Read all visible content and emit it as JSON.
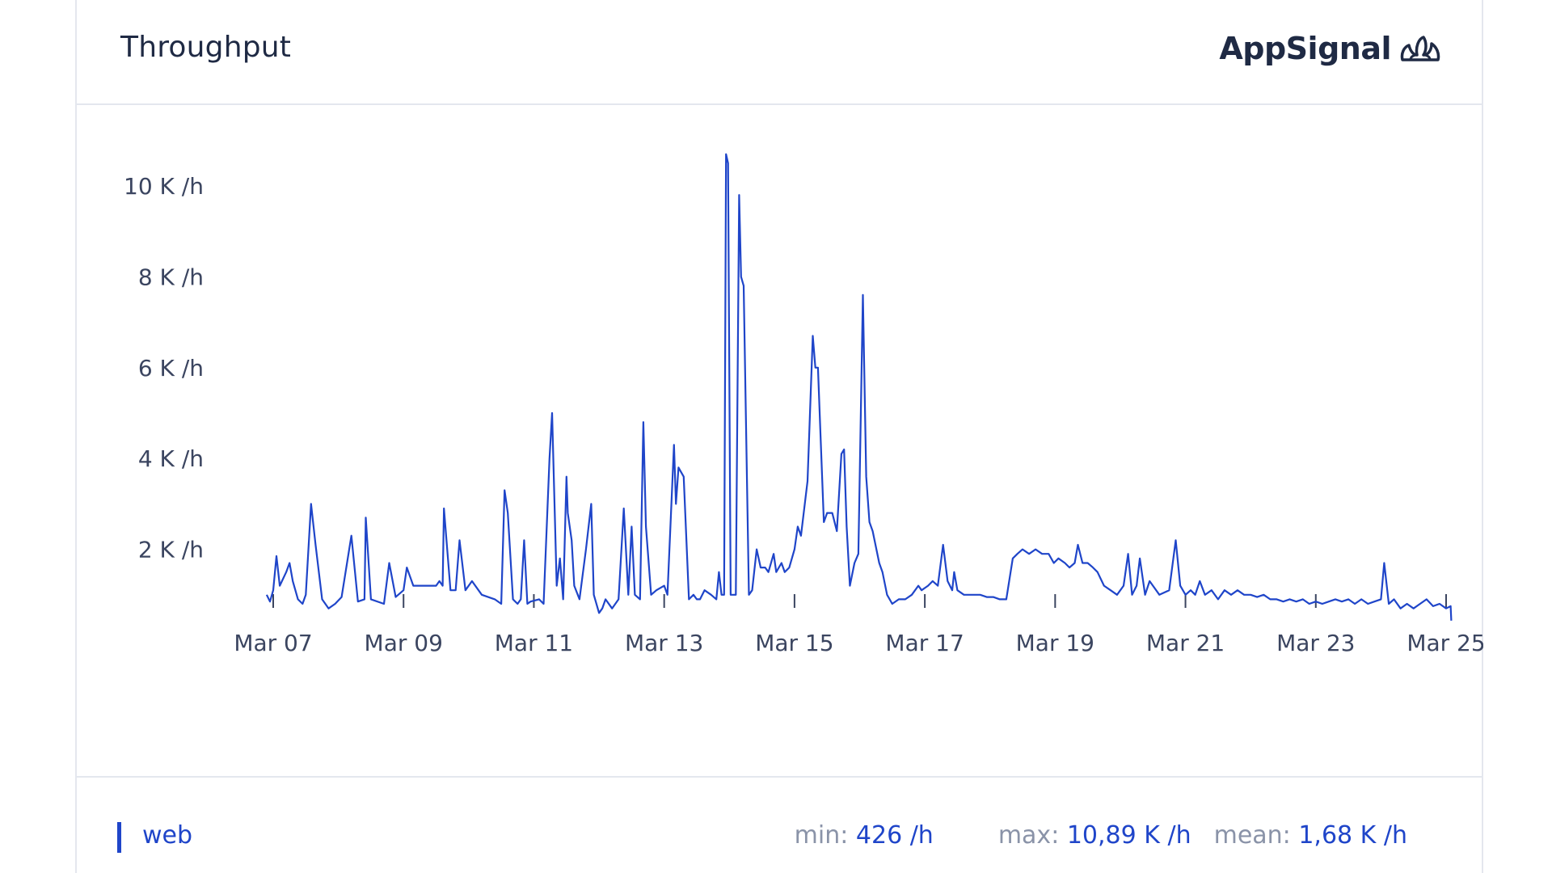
{
  "header": {
    "title": "Throughput",
    "brand": "AppSignal"
  },
  "legend": {
    "series_name": "web",
    "stats": [
      {
        "label": "min:",
        "value": "426 /h"
      },
      {
        "label": "max:",
        "value": "10,89 K /h"
      },
      {
        "label": "mean:",
        "value": "1,68 K /h"
      }
    ]
  },
  "colors": {
    "line": "#1f45c9",
    "text": "#1f2a44",
    "muted": "#8a93a8",
    "border": "#e4e7ee"
  },
  "chart_data": {
    "type": "line",
    "title": "Throughput",
    "xlabel": "",
    "ylabel": "",
    "ylim": [
      0,
      11000
    ],
    "xlim": [
      0,
      18.1
    ],
    "y_ticks": [
      {
        "value": 2000,
        "label": "2 K /h"
      },
      {
        "value": 4000,
        "label": "4 K /h"
      },
      {
        "value": 6000,
        "label": "6 K /h"
      },
      {
        "value": 8000,
        "label": "8 K /h"
      },
      {
        "value": 10000,
        "label": "10 K /h"
      }
    ],
    "x_ticks": [
      {
        "value": 0,
        "label": "Mar 07"
      },
      {
        "value": 2,
        "label": "Mar 09"
      },
      {
        "value": 4,
        "label": "Mar 11"
      },
      {
        "value": 6,
        "label": "Mar 13"
      },
      {
        "value": 8,
        "label": "Mar 15"
      },
      {
        "value": 10,
        "label": "Mar 17"
      },
      {
        "value": 12,
        "label": "Mar 19"
      },
      {
        "value": 14,
        "label": "Mar 21"
      },
      {
        "value": 16,
        "label": "Mar 23"
      },
      {
        "value": 18,
        "label": "Mar 25"
      }
    ],
    "series": [
      {
        "name": "web",
        "points": [
          [
            -0.1,
            1000
          ],
          [
            -0.05,
            850
          ],
          [
            0.0,
            1100
          ],
          [
            0.05,
            1850
          ],
          [
            0.1,
            1200
          ],
          [
            0.2,
            1500
          ],
          [
            0.25,
            1700
          ],
          [
            0.3,
            1300
          ],
          [
            0.38,
            900
          ],
          [
            0.45,
            800
          ],
          [
            0.5,
            1000
          ],
          [
            0.58,
            3000
          ],
          [
            0.65,
            2100
          ],
          [
            0.75,
            900
          ],
          [
            0.85,
            700
          ],
          [
            0.95,
            800
          ],
          [
            1.05,
            950
          ],
          [
            1.2,
            2300
          ],
          [
            1.3,
            850
          ],
          [
            1.4,
            900
          ],
          [
            1.42,
            2700
          ],
          [
            1.5,
            900
          ],
          [
            1.7,
            800
          ],
          [
            1.78,
            1700
          ],
          [
            1.88,
            950
          ],
          [
            2.0,
            1100
          ],
          [
            2.05,
            1600
          ],
          [
            2.15,
            1200
          ],
          [
            2.35,
            1200
          ],
          [
            2.5,
            1200
          ],
          [
            2.55,
            1300
          ],
          [
            2.6,
            1200
          ],
          [
            2.62,
            2900
          ],
          [
            2.72,
            1100
          ],
          [
            2.8,
            1100
          ],
          [
            2.86,
            2200
          ],
          [
            2.95,
            1100
          ],
          [
            3.05,
            1300
          ],
          [
            3.2,
            1000
          ],
          [
            3.4,
            900
          ],
          [
            3.5,
            800
          ],
          [
            3.55,
            3300
          ],
          [
            3.6,
            2800
          ],
          [
            3.68,
            900
          ],
          [
            3.75,
            800
          ],
          [
            3.8,
            900
          ],
          [
            3.85,
            2200
          ],
          [
            3.9,
            800
          ],
          [
            3.95,
            850
          ],
          [
            4.08,
            900
          ],
          [
            4.15,
            800
          ],
          [
            4.24,
            4000
          ],
          [
            4.28,
            5000
          ],
          [
            4.35,
            1200
          ],
          [
            4.4,
            1800
          ],
          [
            4.45,
            900
          ],
          [
            4.5,
            3600
          ],
          [
            4.52,
            2800
          ],
          [
            4.58,
            2200
          ],
          [
            4.62,
            1200
          ],
          [
            4.7,
            900
          ],
          [
            4.8,
            2000
          ],
          [
            4.88,
            3000
          ],
          [
            4.92,
            1000
          ],
          [
            5.0,
            600
          ],
          [
            5.05,
            700
          ],
          [
            5.1,
            900
          ],
          [
            5.2,
            700
          ],
          [
            5.3,
            900
          ],
          [
            5.38,
            2900
          ],
          [
            5.45,
            1000
          ],
          [
            5.5,
            2500
          ],
          [
            5.55,
            1000
          ],
          [
            5.63,
            900
          ],
          [
            5.68,
            4800
          ],
          [
            5.72,
            2500
          ],
          [
            5.8,
            1000
          ],
          [
            5.88,
            1100
          ],
          [
            6.0,
            1200
          ],
          [
            6.05,
            1000
          ],
          [
            6.15,
            4300
          ],
          [
            6.18,
            3000
          ],
          [
            6.22,
            3800
          ],
          [
            6.3,
            3600
          ],
          [
            6.38,
            900
          ],
          [
            6.45,
            1000
          ],
          [
            6.5,
            900
          ],
          [
            6.55,
            900
          ],
          [
            6.62,
            1100
          ],
          [
            6.72,
            1000
          ],
          [
            6.8,
            900
          ],
          [
            6.84,
            1500
          ],
          [
            6.88,
            1000
          ],
          [
            6.92,
            1000
          ],
          [
            6.95,
            10700
          ],
          [
            6.98,
            10500
          ],
          [
            7.02,
            1000
          ],
          [
            7.1,
            1000
          ],
          [
            7.15,
            9800
          ],
          [
            7.18,
            8000
          ],
          [
            7.22,
            7800
          ],
          [
            7.3,
            1000
          ],
          [
            7.35,
            1100
          ],
          [
            7.42,
            2000
          ],
          [
            7.48,
            1600
          ],
          [
            7.55,
            1600
          ],
          [
            7.6,
            1500
          ],
          [
            7.68,
            1900
          ],
          [
            7.72,
            1500
          ],
          [
            7.8,
            1700
          ],
          [
            7.85,
            1500
          ],
          [
            7.92,
            1600
          ],
          [
            8.0,
            2000
          ],
          [
            8.05,
            2500
          ],
          [
            8.1,
            2300
          ],
          [
            8.2,
            3500
          ],
          [
            8.28,
            6700
          ],
          [
            8.32,
            6000
          ],
          [
            8.36,
            6000
          ],
          [
            8.4,
            4500
          ],
          [
            8.45,
            2600
          ],
          [
            8.5,
            2800
          ],
          [
            8.58,
            2800
          ],
          [
            8.65,
            2400
          ],
          [
            8.72,
            4100
          ],
          [
            8.76,
            4200
          ],
          [
            8.8,
            2500
          ],
          [
            8.85,
            1200
          ],
          [
            8.92,
            1700
          ],
          [
            8.98,
            1900
          ],
          [
            9.05,
            7600
          ],
          [
            9.1,
            3600
          ],
          [
            9.15,
            2600
          ],
          [
            9.2,
            2400
          ],
          [
            9.3,
            1700
          ],
          [
            9.35,
            1500
          ],
          [
            9.42,
            1000
          ],
          [
            9.5,
            800
          ],
          [
            9.6,
            900
          ],
          [
            9.7,
            900
          ],
          [
            9.8,
            1000
          ],
          [
            9.9,
            1200
          ],
          [
            9.95,
            1100
          ],
          [
            10.05,
            1200
          ],
          [
            10.12,
            1300
          ],
          [
            10.2,
            1200
          ],
          [
            10.28,
            2100
          ],
          [
            10.35,
            1300
          ],
          [
            10.42,
            1100
          ],
          [
            10.45,
            1500
          ],
          [
            10.5,
            1100
          ],
          [
            10.6,
            1000
          ],
          [
            10.75,
            1000
          ],
          [
            10.85,
            1000
          ],
          [
            10.95,
            950
          ],
          [
            11.05,
            950
          ],
          [
            11.15,
            900
          ],
          [
            11.25,
            900
          ],
          [
            11.35,
            1800
          ],
          [
            11.42,
            1900
          ],
          [
            11.5,
            2000
          ],
          [
            11.6,
            1900
          ],
          [
            11.7,
            2000
          ],
          [
            11.8,
            1900
          ],
          [
            11.9,
            1900
          ],
          [
            11.98,
            1700
          ],
          [
            12.05,
            1800
          ],
          [
            12.15,
            1700
          ],
          [
            12.22,
            1600
          ],
          [
            12.3,
            1700
          ],
          [
            12.35,
            2100
          ],
          [
            12.42,
            1700
          ],
          [
            12.5,
            1700
          ],
          [
            12.58,
            1600
          ],
          [
            12.65,
            1500
          ],
          [
            12.75,
            1200
          ],
          [
            12.85,
            1100
          ],
          [
            12.95,
            1000
          ],
          [
            13.05,
            1200
          ],
          [
            13.12,
            1900
          ],
          [
            13.18,
            1000
          ],
          [
            13.25,
            1200
          ],
          [
            13.3,
            1800
          ],
          [
            13.38,
            1000
          ],
          [
            13.45,
            1300
          ],
          [
            13.5,
            1200
          ],
          [
            13.6,
            1000
          ],
          [
            13.75,
            1100
          ],
          [
            13.85,
            2200
          ],
          [
            13.92,
            1200
          ],
          [
            14.0,
            1000
          ],
          [
            14.08,
            1100
          ],
          [
            14.15,
            1000
          ],
          [
            14.22,
            1300
          ],
          [
            14.3,
            1000
          ],
          [
            14.4,
            1100
          ],
          [
            14.5,
            900
          ],
          [
            14.6,
            1100
          ],
          [
            14.7,
            1000
          ],
          [
            14.8,
            1100
          ],
          [
            14.9,
            1000
          ],
          [
            15.0,
            1000
          ],
          [
            15.1,
            950
          ],
          [
            15.2,
            1000
          ],
          [
            15.3,
            900
          ],
          [
            15.4,
            900
          ],
          [
            15.5,
            850
          ],
          [
            15.6,
            900
          ],
          [
            15.7,
            850
          ],
          [
            15.8,
            900
          ],
          [
            15.9,
            800
          ],
          [
            16.0,
            850
          ],
          [
            16.1,
            800
          ],
          [
            16.2,
            850
          ],
          [
            16.3,
            900
          ],
          [
            16.4,
            850
          ],
          [
            16.5,
            900
          ],
          [
            16.6,
            800
          ],
          [
            16.7,
            900
          ],
          [
            16.8,
            800
          ],
          [
            16.9,
            850
          ],
          [
            17.0,
            900
          ],
          [
            17.05,
            1700
          ],
          [
            17.12,
            800
          ],
          [
            17.2,
            900
          ],
          [
            17.3,
            700
          ],
          [
            17.4,
            800
          ],
          [
            17.5,
            700
          ],
          [
            17.6,
            800
          ],
          [
            17.7,
            900
          ],
          [
            17.8,
            750
          ],
          [
            17.9,
            800
          ],
          [
            18.0,
            700
          ],
          [
            18.07,
            750
          ],
          [
            18.08,
            430
          ]
        ]
      }
    ]
  }
}
